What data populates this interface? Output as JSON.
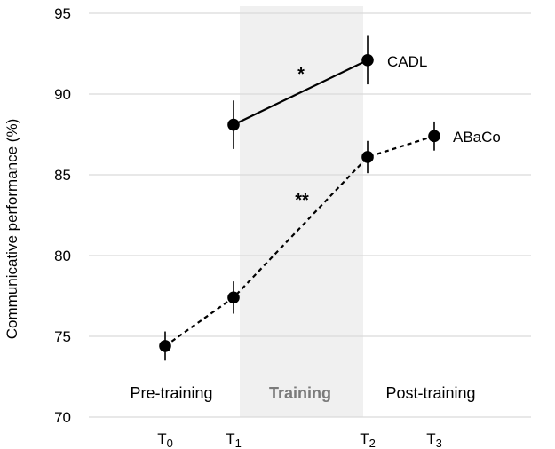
{
  "chart_data": {
    "type": "line",
    "ylabel": "Communicative performance (%)",
    "xlabel": "",
    "ylim": [
      70,
      95
    ],
    "yticks": [
      70,
      75,
      80,
      85,
      90,
      95
    ],
    "grid": true,
    "x": [
      {
        "base": "T",
        "sub": "0"
      },
      {
        "base": "T",
        "sub": "1"
      },
      {
        "base": "T",
        "sub": "2"
      },
      {
        "base": "T",
        "sub": "3"
      }
    ],
    "phases": [
      {
        "label": "Pre-training",
        "shaded": false
      },
      {
        "label": "Training",
        "shaded": true
      },
      {
        "label": "Post-training",
        "shaded": false
      }
    ],
    "series": [
      {
        "name": "CADL",
        "style": "solid",
        "points": [
          {
            "x": "T1",
            "y": 88.1,
            "err": 1.5
          },
          {
            "x": "T2",
            "y": 92.1,
            "err": 1.5
          }
        ]
      },
      {
        "name": "ABaCo",
        "style": "dashed",
        "points": [
          {
            "x": "T0",
            "y": 74.4,
            "err": 0.9
          },
          {
            "x": "T1",
            "y": 77.4,
            "err": 1.0
          },
          {
            "x": "T2",
            "y": 86.1,
            "err": 1.0
          },
          {
            "x": "T3",
            "y": 87.4,
            "err": 0.9
          }
        ]
      }
    ],
    "significance": [
      {
        "series": "CADL",
        "label": "*"
      },
      {
        "series": "ABaCo",
        "label": "**"
      }
    ],
    "colors": {
      "marker": "#000000",
      "shade": "#f0f0f0",
      "grid": "#d9d9d9",
      "training_text": "#7a7a7a"
    }
  }
}
